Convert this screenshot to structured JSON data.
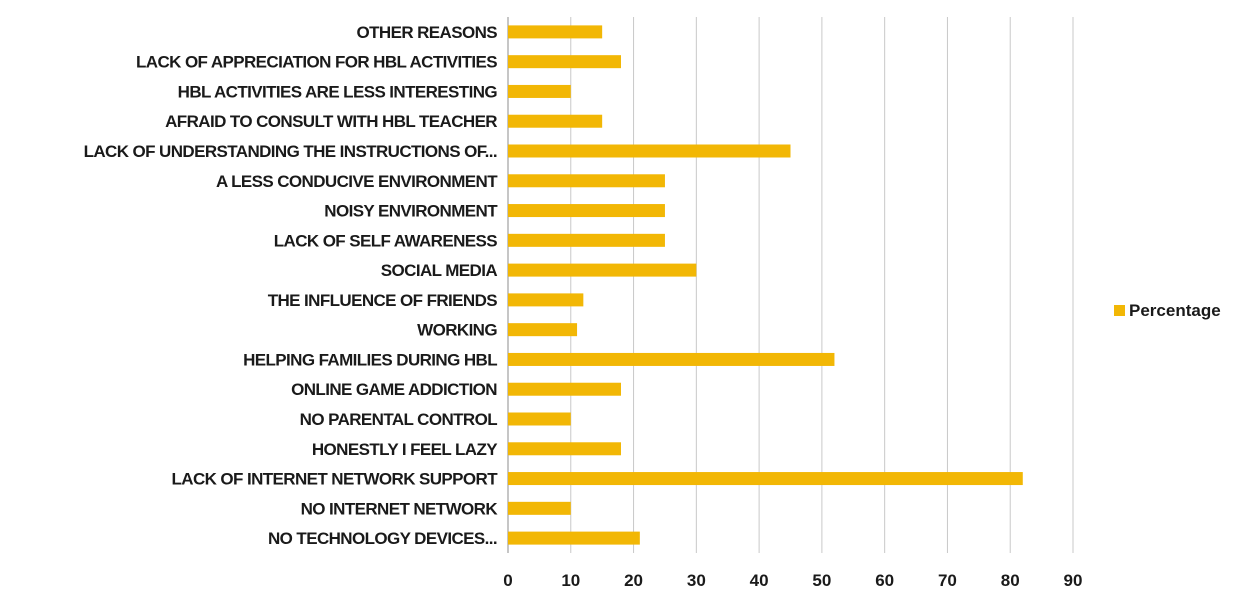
{
  "chart_data": {
    "type": "bar",
    "orientation": "horizontal",
    "categories": [
      "NO TECHNOLOGY DEVICES...",
      "NO INTERNET NETWORK",
      "LACK OF INTERNET NETWORK SUPPORT",
      "HONESTLY I FEEL LAZY",
      "NO PARENTAL CONTROL",
      "ONLINE GAME ADDICTION",
      "HELPING FAMILIES DURING HBL",
      "WORKING",
      "THE INFLUENCE OF FRIENDS",
      "SOCIAL MEDIA",
      "LACK OF SELF AWARENESS",
      "NOISY ENVIRONMENT",
      "A LESS CONDUCIVE ENVIRONMENT",
      "LACK OF UNDERSTANDING THE INSTRUCTIONS OF...",
      "AFRAID TO CONSULT WITH HBL TEACHER",
      "HBL ACTIVITIES ARE LESS INTERESTING",
      "LACK OF APPRECIATION FOR HBL ACTIVITIES",
      "OTHER REASONS"
    ],
    "series": [
      {
        "name": "Percentage",
        "color": "#F2B705",
        "values": [
          21,
          10,
          82,
          18,
          10,
          18,
          52,
          11,
          12,
          30,
          25,
          25,
          25,
          45,
          15,
          10,
          18,
          15
        ]
      }
    ],
    "xlim": [
      0,
      90
    ],
    "xticks": [
      0,
      10,
      20,
      30,
      40,
      50,
      60,
      70,
      80,
      90
    ],
    "grid": "vertical",
    "legend_position": "right"
  }
}
